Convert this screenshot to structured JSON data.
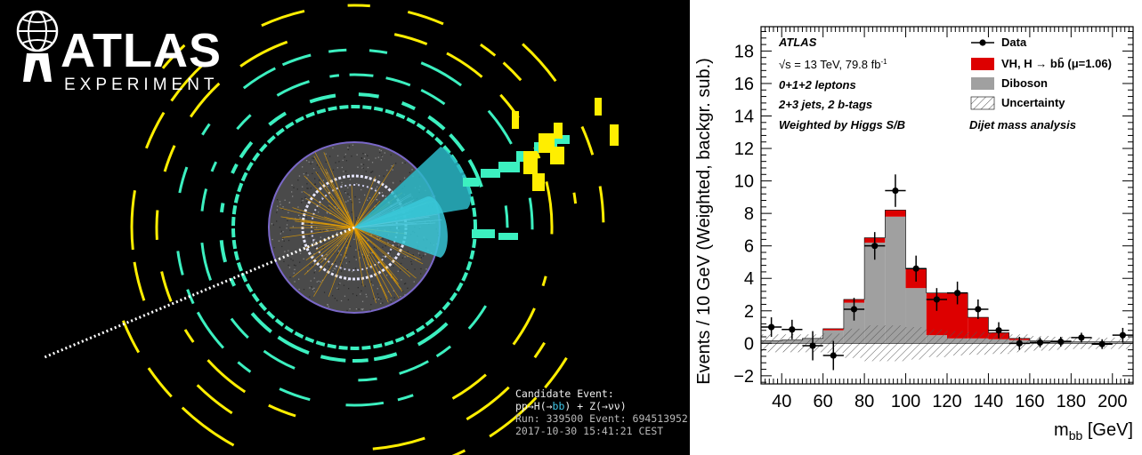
{
  "event_display": {
    "logo": {
      "main": "ATLAS",
      "sub": "EXPERIMENT"
    },
    "caption": {
      "line1": "Candidate Event:",
      "line2_pre": "pp→H(→",
      "line2_bb": "bb",
      "line2_post": ") + Z(→νν)",
      "line3": "Run: 339500 Event: 694513952",
      "line4": "2017-10-30 15:41:21 CEST"
    },
    "colors": {
      "background": "#000000",
      "calo_hits": "#ffee00",
      "muon_hits": "#3cf0c0",
      "jets": "#2ab8c8",
      "tracks": "#e8a000",
      "inner_detector": "#7a68c8"
    }
  },
  "chart_data": {
    "type": "bar",
    "stacked": true,
    "annotations": {
      "experiment": "ATLAS",
      "energy": "√s = 13 TeV, 79.8 fb",
      "energy_sup": "-1",
      "leptons": "0+1+2 leptons",
      "jets": "2+3 jets, 2 b-tags",
      "weighting": "Weighted by Higgs S/B",
      "analysis": "Dijet mass analysis"
    },
    "xlabel_main": "m",
    "xlabel_sub": "bb",
    "xlabel_unit": " [GeV]",
    "ylabel": "Events / 10 GeV (Weighted, backgr. sub.)",
    "xlim": [
      30,
      210
    ],
    "ylim": [
      -2.5,
      19.5
    ],
    "xticks": [
      "40",
      "60",
      "80",
      "100",
      "120",
      "140",
      "160",
      "180",
      "200"
    ],
    "yticks": [
      "−2",
      "0",
      "2",
      "4",
      "6",
      "8",
      "10",
      "12",
      "14",
      "16",
      "18"
    ],
    "bin_edges": [
      30,
      40,
      50,
      60,
      70,
      80,
      90,
      100,
      110,
      120,
      130,
      140,
      150,
      160,
      170,
      180,
      190,
      200,
      210
    ],
    "series": [
      {
        "name": "Diboson",
        "color": "#a0a0a0",
        "values": [
          0.15,
          0.2,
          0.3,
          0.8,
          2.5,
          6.2,
          7.8,
          3.4,
          0.5,
          0.3,
          0.3,
          0.25,
          0.2,
          0.15,
          0.15,
          0.1,
          0.1,
          0.1
        ]
      },
      {
        "name": "VH, H → bb̄ (μ=1.06)",
        "color": "#dd0000",
        "values": [
          0.0,
          0.0,
          0.0,
          0.1,
          0.2,
          0.3,
          0.4,
          1.2,
          2.6,
          2.8,
          1.3,
          0.4,
          0.1,
          0.0,
          0.0,
          0.0,
          0.0,
          0.0
        ]
      }
    ],
    "data": {
      "name": "Data",
      "x": [
        35,
        45,
        55,
        65,
        75,
        85,
        95,
        105,
        115,
        125,
        135,
        145,
        155,
        165,
        175,
        185,
        195,
        205
      ],
      "y": [
        1.0,
        0.85,
        -0.15,
        -0.75,
        2.1,
        6.0,
        9.4,
        4.6,
        2.7,
        3.1,
        2.1,
        0.8,
        0.0,
        0.05,
        0.1,
        0.35,
        -0.05,
        0.5
      ],
      "yerr": [
        0.6,
        0.6,
        0.9,
        0.9,
        0.7,
        0.85,
        1.0,
        0.8,
        0.7,
        0.7,
        0.6,
        0.5,
        0.4,
        0.3,
        0.3,
        0.3,
        0.3,
        0.45
      ]
    },
    "uncertainty": {
      "name": "Uncertainty",
      "values": [
        0.55,
        0.55,
        0.55,
        0.6,
        0.9,
        1.1,
        1.1,
        1.0,
        0.85,
        0.75,
        0.7,
        0.65,
        0.55,
        0.45,
        0.4,
        0.35,
        0.35,
        0.35
      ]
    },
    "legend_position": "top-right",
    "grid": false
  }
}
